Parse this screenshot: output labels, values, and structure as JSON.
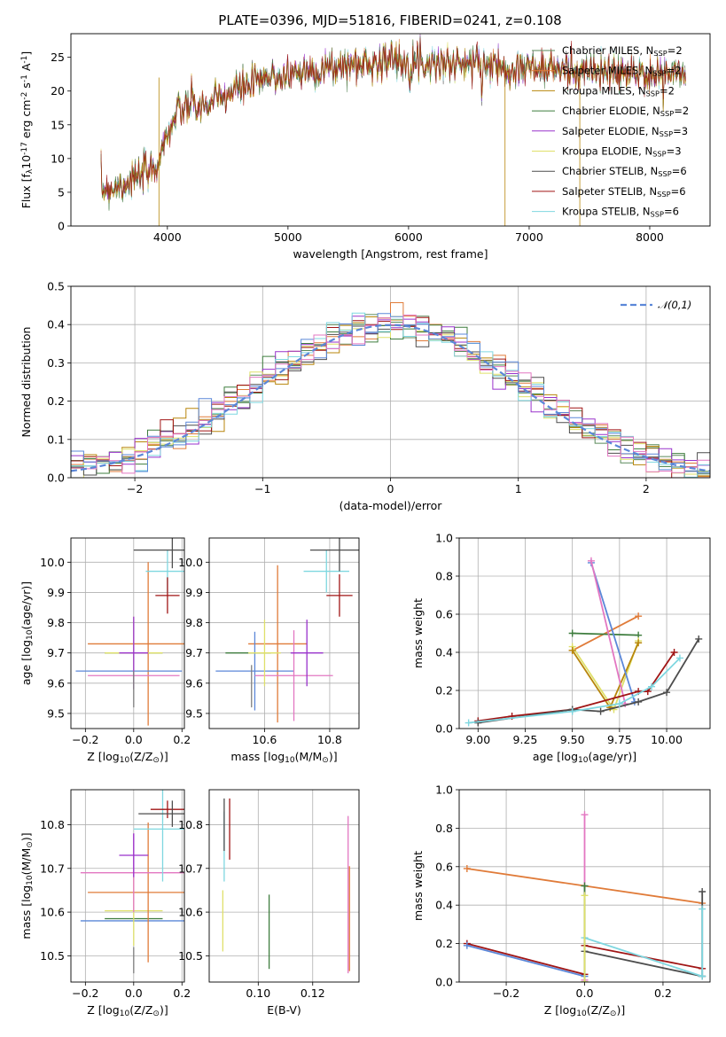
{
  "title": "PLATE=0396, MJD=51816, FIBERID=0241, z=0.108",
  "models": [
    {
      "name": "Chabrier MILES, N$_{SSP}$=2",
      "color": "#5b8a5b"
    },
    {
      "name": "Salpeter MILES, N$_{SSP}$=2",
      "color": "#e07b39"
    },
    {
      "name": "Kroupa MILES, N$_{SSP}$=2",
      "color": "#b8860b"
    },
    {
      "name": "Chabrier ELODIE, N$_{SSP}$=2",
      "color": "#3e7d3e"
    },
    {
      "name": "Salpeter ELODIE, N$_{SSP}$=3",
      "color": "#9932cc"
    },
    {
      "name": "Kroupa ELODIE, N$_{SSP}$=3",
      "color": "#dfe06a"
    },
    {
      "name": "Chabrier STELIB, N$_{SSP}$=6",
      "color": "#4d4d4d"
    },
    {
      "name": "Salpeter STELIB, N$_{SSP}$=6",
      "color": "#a01515"
    },
    {
      "name": "Kroupa STELIB, N$_{SSP}$=6",
      "color": "#7fd7e0"
    }
  ],
  "chart_data": [
    {
      "type": "line",
      "id": "spectrum",
      "xlabel": "wavelength [Angstrom, rest frame]",
      "ylabel": "Flux [f$_\\lambda$10$^{-17}$ erg cm$^{-2}$ s$^{-1}$ A$^{-1}$]",
      "xlim": [
        3200,
        8500
      ],
      "ylim": [
        0,
        28.5
      ],
      "xticks": [
        4000,
        5000,
        6000,
        7000,
        8000
      ],
      "yticks": [
        0,
        5,
        10,
        15,
        20,
        25
      ],
      "legend": "top-right",
      "continuum": {
        "x": [
          3450,
          3600,
          3800,
          3900,
          3950,
          4000,
          4100,
          4200,
          4300,
          4400,
          4500,
          4600,
          4700,
          4800,
          4900,
          5000,
          5200,
          5400,
          5600,
          5800,
          6000,
          6200,
          6400,
          6600,
          6800,
          7000,
          7200,
          7400,
          7600,
          7800,
          8000,
          8200
        ],
        "y": [
          5.5,
          6.0,
          7.5,
          8.5,
          11,
          14,
          17,
          18,
          17.5,
          18.5,
          19.5,
          20.5,
          21,
          21.5,
          22,
          22.5,
          23,
          23.5,
          24,
          24.5,
          24.5,
          24.2,
          24,
          24,
          23.5,
          23.5,
          23.2,
          23,
          22.8,
          22.5,
          22.5,
          22.5
        ]
      }
    },
    {
      "type": "bar",
      "id": "residuals",
      "xlabel": "(data-model)/error",
      "ylabel": "Normed distribution",
      "xlim": [
        -2.5,
        2.5
      ],
      "ylim": [
        0,
        0.5
      ],
      "xticks": [
        -2,
        -1,
        0,
        1,
        2
      ],
      "yticks": [
        0.0,
        0.1,
        0.2,
        0.3,
        0.4,
        0.5
      ],
      "bin_width": 0.1,
      "reference": {
        "name": "$\\mathcal{N}(0,1)$",
        "mean": 0,
        "sigma": 1,
        "color": "#5b87d8"
      },
      "legend": "top-right"
    },
    {
      "type": "scatter",
      "id": "age-vs-Z",
      "xlabel": "Z [log$_{10}$(Z/Z$_\\odot$)]",
      "ylabel": "age  [log$_{10}$(age/yr)]",
      "xlim": [
        -0.26,
        0.21
      ],
      "ylim": [
        9.45,
        10.08
      ],
      "xticks": [
        -0.2,
        0.0,
        0.2
      ],
      "yticks": [
        9.5,
        9.6,
        9.7,
        9.8,
        9.9,
        10.0
      ],
      "points": [
        {
          "x": 0.0,
          "y": 9.7,
          "xerr": 0.12,
          "yerr": 0.0,
          "color": "#3e7d3e"
        },
        {
          "x": 0.06,
          "y": 9.73,
          "xerr": 0.25,
          "yerr": 0.27,
          "color": "#e07b39"
        },
        {
          "x": -0.02,
          "y": 9.64,
          "xerr": 0.22,
          "yerr": 0.0,
          "color": "#5b87d8"
        },
        {
          "x": 0.0,
          "y": 9.625,
          "xerr": 0.19,
          "yerr": 0.0,
          "color": "#e377c2"
        },
        {
          "x": 0.0,
          "y": 9.7,
          "xerr": 0.12,
          "yerr": 0.12,
          "color": "#dfe06a"
        },
        {
          "x": 0.0,
          "y": 9.7,
          "xerr": 0.06,
          "yerr": 0.12,
          "color": "#9932cc"
        },
        {
          "x": 0.0,
          "y": 9.58,
          "xerr": 0.0,
          "yerr": 0.06,
          "color": "#7f7f7f"
        },
        {
          "x": 0.14,
          "y": 9.97,
          "xerr": 0.09,
          "yerr": 0.07,
          "color": "#7fd7e0"
        },
        {
          "x": 0.14,
          "y": 9.89,
          "xerr": 0.05,
          "yerr": 0.06,
          "color": "#a01515"
        },
        {
          "x": 0.16,
          "y": 10.04,
          "xerr": 0.16,
          "yerr": 0.06,
          "color": "#4d4d4d"
        }
      ]
    },
    {
      "type": "scatter",
      "id": "age-vs-mass",
      "xlabel": "mass [log$_{10}$(M/M$_\\odot$)]",
      "ylabel": "",
      "xlim": [
        10.43,
        10.89
      ],
      "ylim": [
        9.45,
        10.08
      ],
      "xticks": [
        10.6,
        10.8
      ],
      "yticks": [
        9.5,
        9.6,
        9.7,
        9.8,
        9.9,
        10.0
      ],
      "points": [
        {
          "x": 10.55,
          "y": 9.7,
          "xerr": 0.07,
          "yerr": 0.0,
          "color": "#3e7d3e"
        },
        {
          "x": 10.64,
          "y": 9.73,
          "xerr": 0.09,
          "yerr": 0.26,
          "color": "#e07b39"
        },
        {
          "x": 10.57,
          "y": 9.64,
          "xerr": 0.12,
          "yerr": 0.13,
          "color": "#5b87d8"
        },
        {
          "x": 10.69,
          "y": 9.625,
          "xerr": 0.12,
          "yerr": 0.15,
          "color": "#e377c2"
        },
        {
          "x": 10.6,
          "y": 9.7,
          "xerr": 0.05,
          "yerr": 0.11,
          "color": "#dfe06a"
        },
        {
          "x": 10.73,
          "y": 9.7,
          "xerr": 0.05,
          "yerr": 0.11,
          "color": "#9932cc"
        },
        {
          "x": 10.56,
          "y": 9.59,
          "xerr": 0.0,
          "yerr": 0.07,
          "color": "#7f7f7f"
        },
        {
          "x": 10.79,
          "y": 9.97,
          "xerr": 0.07,
          "yerr": 0.07,
          "color": "#7fd7e0"
        },
        {
          "x": 10.83,
          "y": 9.89,
          "xerr": 0.04,
          "yerr": 0.07,
          "color": "#a01515"
        },
        {
          "x": 10.83,
          "y": 10.04,
          "xerr": 0.09,
          "yerr": 0.07,
          "color": "#4d4d4d"
        }
      ]
    },
    {
      "type": "line",
      "id": "massweight-vs-age",
      "xlabel": "age  [log$_{10}$(age/yr)]",
      "ylabel": "mass weight",
      "xlim": [
        8.9,
        10.23
      ],
      "ylim": [
        0,
        1.0
      ],
      "xticks": [
        9.0,
        9.25,
        9.5,
        9.75,
        10.0
      ],
      "yticks": [
        0.0,
        0.2,
        0.4,
        0.6,
        0.8,
        1.0
      ],
      "series": [
        {
          "color": "#e07b39",
          "x": [
            9.5,
            9.85
          ],
          "y": [
            0.41,
            0.59
          ]
        },
        {
          "color": "#3e7d3e",
          "x": [
            9.5,
            9.85
          ],
          "y": [
            0.5,
            0.49
          ]
        },
        {
          "color": "#dfe06a",
          "x": [
            9.5,
            9.72,
            9.85
          ],
          "y": [
            0.43,
            0.1,
            0.46
          ]
        },
        {
          "color": "#b8860b",
          "x": [
            9.5,
            9.7,
            9.85
          ],
          "y": [
            0.41,
            0.11,
            0.45
          ]
        },
        {
          "color": "#5b87d8",
          "x": [
            9.6,
            9.83
          ],
          "y": [
            0.87,
            0.14
          ]
        },
        {
          "color": "#e377c2",
          "x": [
            9.6,
            9.78
          ],
          "y": [
            0.88,
            0.13
          ]
        },
        {
          "color": "#a01515",
          "x": [
            9.0,
            9.18,
            9.5,
            9.85,
            9.9,
            10.04
          ],
          "y": [
            0.04,
            0.065,
            0.1,
            0.195,
            0.195,
            0.4
          ]
        },
        {
          "color": "#4d4d4d",
          "x": [
            9.0,
            9.5,
            9.65,
            9.85,
            10.0,
            10.17
          ],
          "y": [
            0.03,
            0.1,
            0.09,
            0.14,
            0.19,
            0.47
          ]
        },
        {
          "color": "#7fd7e0",
          "x": [
            8.95,
            9.5,
            9.75,
            9.92,
            10.07
          ],
          "y": [
            0.03,
            0.09,
            0.13,
            0.22,
            0.37
          ]
        }
      ]
    },
    {
      "type": "scatter",
      "id": "mass-vs-Z",
      "xlabel": "Z [log$_{10}$(Z/Z$_\\odot$)]",
      "ylabel": "mass [log$_{10}$(M/M$_\\odot$)]",
      "xlim": [
        -0.26,
        0.21
      ],
      "ylim": [
        10.44,
        10.88
      ],
      "xticks": [
        -0.2,
        0.0,
        0.2
      ],
      "yticks": [
        10.5,
        10.6,
        10.7,
        10.8
      ],
      "points": [
        {
          "x": 0.0,
          "y": 10.58,
          "xerr": 0.22,
          "yerr": 0.0,
          "color": "#5b87d8"
        },
        {
          "x": 0.0,
          "y": 10.585,
          "xerr": 0.12,
          "yerr": 0.0,
          "color": "#3e7d3e"
        },
        {
          "x": 0.0,
          "y": 10.603,
          "xerr": 0.12,
          "yerr": 0.08,
          "color": "#dfe06a"
        },
        {
          "x": 0.06,
          "y": 10.645,
          "xerr": 0.25,
          "yerr": 0.16,
          "color": "#e07b39"
        },
        {
          "x": 0.0,
          "y": 10.69,
          "xerr": 0.22,
          "yerr": 0.09,
          "color": "#e377c2"
        },
        {
          "x": 0.0,
          "y": 10.73,
          "xerr": 0.06,
          "yerr": 0.05,
          "color": "#9932cc"
        },
        {
          "x": 0.0,
          "y": 10.49,
          "xerr": 0.0,
          "yerr": 0.03,
          "color": "#7f7f7f"
        },
        {
          "x": 0.12,
          "y": 10.79,
          "xerr": 0.12,
          "yerr": 0.12,
          "color": "#7fd7e0"
        },
        {
          "x": 0.14,
          "y": 10.835,
          "xerr": 0.07,
          "yerr": 0.02,
          "color": "#a01515"
        },
        {
          "x": 0.16,
          "y": 10.825,
          "xerr": 0.14,
          "yerr": 0.03,
          "color": "#4d4d4d"
        }
      ]
    },
    {
      "type": "scatter",
      "id": "mass-vs-EBV",
      "xlabel": "E(B-V)",
      "ylabel": "",
      "xlim": [
        0.082,
        0.137
      ],
      "ylim": [
        10.44,
        10.88
      ],
      "xticks": [
        0.1,
        0.12
      ],
      "yticks": [
        10.5,
        10.6,
        10.7,
        10.8
      ],
      "points": [
        {
          "x": 0.087,
          "y": 10.58,
          "xerr": 0,
          "yerr": 0.07,
          "color": "#dfe06a"
        },
        {
          "x": 0.0875,
          "y": 10.75,
          "xerr": 0,
          "yerr": 0.08,
          "color": "#7fd7e0"
        },
        {
          "x": 0.0875,
          "y": 10.8,
          "xerr": 0,
          "yerr": 0.06,
          "color": "#4d4d4d"
        },
        {
          "x": 0.0895,
          "y": 10.79,
          "xerr": 0,
          "yerr": 0.07,
          "color": "#a01515"
        },
        {
          "x": 0.104,
          "y": 10.555,
          "xerr": 0,
          "yerr": 0.085,
          "color": "#3e7d3e"
        },
        {
          "x": 0.133,
          "y": 10.64,
          "xerr": 0,
          "yerr": 0.18,
          "color": "#e377c2"
        },
        {
          "x": 0.1335,
          "y": 10.585,
          "xerr": 0,
          "yerr": 0.12,
          "color": "#e07b39"
        }
      ]
    },
    {
      "type": "line",
      "id": "massweight-vs-Z",
      "xlabel": "Z [log$_{10}$(Z/Z$_\\odot$)]",
      "ylabel": "mass weight",
      "xlim": [
        -0.32,
        0.32
      ],
      "ylim": [
        0,
        1.0
      ],
      "xticks": [
        -0.2,
        0.0,
        0.2
      ],
      "yticks": [
        0.0,
        0.2,
        0.4,
        0.6,
        0.8,
        1.0
      ],
      "series": [
        {
          "color": "#e07b39",
          "x": [
            -0.3,
            0.3
          ],
          "y": [
            0.59,
            0.41
          ]
        },
        {
          "color": "#a01515",
          "x": [
            -0.3,
            0.0,
            0.0,
            0.3
          ],
          "y": [
            0.2,
            0.04,
            0.19,
            0.07
          ]
        },
        {
          "color": "#5b87d8",
          "x": [
            -0.3,
            0.0
          ],
          "y": [
            0.19,
            0.03
          ]
        },
        {
          "color": "#4d4d4d",
          "x": [
            0.0,
            0.3,
            0.3
          ],
          "y": [
            0.16,
            0.03,
            0.47
          ]
        },
        {
          "color": "#7fd7e0",
          "x": [
            0.0,
            0.3,
            0.3
          ],
          "y": [
            0.23,
            0.03,
            0.38
          ]
        },
        {
          "color": "#e377c2",
          "x": [
            0.0,
            0.0
          ],
          "y": [
            0.01,
            0.87
          ]
        },
        {
          "color": "#3e7d3e",
          "x": [
            0.0,
            0.0
          ],
          "y": [
            0.0,
            0.5
          ]
        },
        {
          "color": "#dfe06a",
          "x": [
            0.0,
            0.0
          ],
          "y": [
            0.0,
            0.45
          ]
        }
      ]
    }
  ]
}
